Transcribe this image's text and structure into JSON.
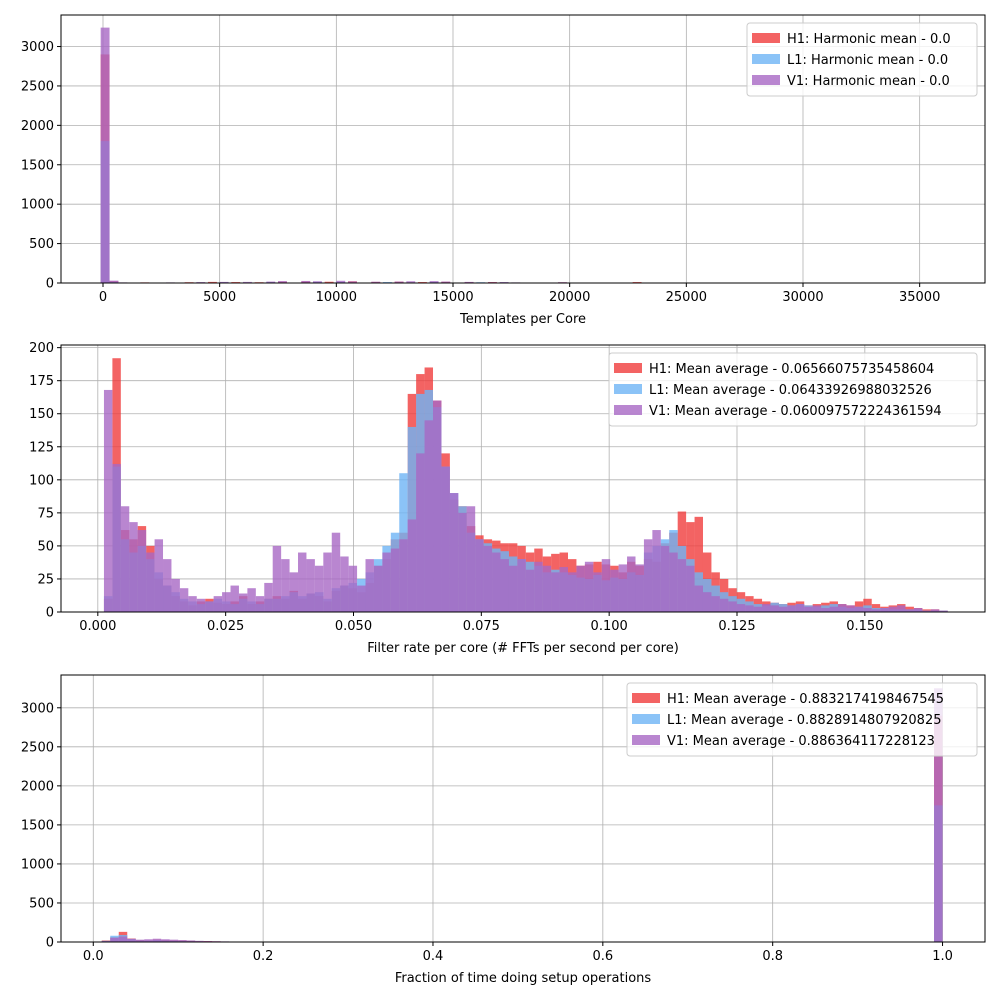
{
  "chart_data": [
    {
      "type": "bar",
      "xlabel": "Templates per Core",
      "ylabel": "",
      "xlim": [
        -1800,
        37800
      ],
      "ylim": [
        0,
        3400
      ],
      "xticks": [
        0,
        5000,
        10000,
        15000,
        20000,
        25000,
        30000,
        35000
      ],
      "xtick_labels": [
        "0",
        "5000",
        "10000",
        "15000",
        "20000",
        "25000",
        "30000",
        "35000"
      ],
      "yticks": [
        0,
        500,
        1000,
        1500,
        2000,
        2500,
        3000
      ],
      "ytick_labels": [
        "0",
        "500",
        "1000",
        "1500",
        "2000",
        "2500",
        "3000"
      ],
      "grid": true,
      "legend_position": "upper-right",
      "series": [
        {
          "name": "H1: Harmonic mean  - 0.0",
          "color": "#f03c3c",
          "bins": [
            [
              -100,
              280,
              2900
            ],
            [
              280,
              660,
              25
            ],
            [
              660,
              1040,
              6
            ],
            [
              1600,
              1980,
              8
            ],
            [
              2600,
              2980,
              6
            ],
            [
              3500,
              3880,
              10
            ],
            [
              4500,
              4880,
              14
            ],
            [
              5500,
              5880,
              12
            ],
            [
              6500,
              6880,
              10
            ],
            [
              7500,
              7880,
              18
            ],
            [
              8500,
              8880,
              20
            ],
            [
              9500,
              9880,
              16
            ],
            [
              10500,
              10880,
              22
            ],
            [
              11500,
              11880,
              14
            ],
            [
              12500,
              12880,
              18
            ],
            [
              13500,
              13880,
              12
            ],
            [
              14500,
              14880,
              16
            ],
            [
              15500,
              15880,
              10
            ],
            [
              16500,
              16880,
              12
            ],
            [
              18000,
              18380,
              6
            ],
            [
              19500,
              19880,
              8
            ],
            [
              22700,
              23080,
              12
            ]
          ]
        },
        {
          "name": "L1: Harmonic mean  - 0.0",
          "color": "#6eb4f5",
          "bins": [
            [
              -100,
              280,
              1800
            ],
            [
              280,
              660,
              15
            ],
            [
              660,
              1040,
              5
            ],
            [
              3000,
              3380,
              6
            ],
            [
              5000,
              5380,
              10
            ],
            [
              7000,
              7380,
              12
            ],
            [
              9000,
              9380,
              16
            ],
            [
              10000,
              10380,
              14
            ],
            [
              12000,
              12380,
              12
            ],
            [
              14000,
              14380,
              14
            ],
            [
              16000,
              16380,
              10
            ],
            [
              17000,
              17380,
              8
            ],
            [
              19000,
              19380,
              6
            ]
          ]
        },
        {
          "name": "V1: Harmonic mean  - 0.0",
          "color": "#a868c4",
          "bins": [
            [
              -100,
              280,
              3240
            ],
            [
              280,
              660,
              30
            ],
            [
              660,
              1040,
              8
            ],
            [
              2700,
              3080,
              8
            ],
            [
              4000,
              4380,
              12
            ],
            [
              5000,
              5380,
              14
            ],
            [
              6000,
              6380,
              14
            ],
            [
              7000,
              7380,
              18
            ],
            [
              7500,
              7880,
              24
            ],
            [
              8500,
              8880,
              26
            ],
            [
              9000,
              9380,
              22
            ],
            [
              10000,
              10380,
              28
            ],
            [
              10500,
              10880,
              20
            ],
            [
              11500,
              11880,
              16
            ],
            [
              12500,
              12880,
              18
            ],
            [
              13000,
              13380,
              22
            ],
            [
              14000,
              14380,
              24
            ],
            [
              14500,
              14880,
              18
            ],
            [
              15500,
              15880,
              14
            ],
            [
              16500,
              16880,
              10
            ],
            [
              17000,
              17380,
              12
            ],
            [
              17500,
              17880,
              8
            ],
            [
              19500,
              19880,
              10
            ],
            [
              20000,
              20380,
              6
            ]
          ]
        }
      ]
    },
    {
      "type": "bar",
      "xlabel": "Filter rate per core (# FFTs per second per core)",
      "ylabel": "",
      "xlim": [
        -0.0072,
        0.1735
      ],
      "ylim": [
        0,
        202
      ],
      "xticks": [
        0.0,
        0.025,
        0.05,
        0.075,
        0.1,
        0.125,
        0.15
      ],
      "xtick_labels": [
        "0.000",
        "0.025",
        "0.050",
        "0.075",
        "0.100",
        "0.125",
        "0.150"
      ],
      "yticks": [
        0,
        25,
        50,
        75,
        100,
        125,
        150,
        175,
        200
      ],
      "ytick_labels": [
        "0",
        "25",
        "50",
        "75",
        "100",
        "125",
        "150",
        "175",
        "200"
      ],
      "grid": true,
      "legend_position": "upper-right",
      "series": [
        {
          "name": "H1: Mean average - 0.06566075735458604",
          "color": "#f03c3c",
          "x_start": 0.0012,
          "bin_width": 0.00165,
          "counts": [
            10,
            192,
            62,
            55,
            65,
            50,
            25,
            20,
            12,
            8,
            5,
            8,
            10,
            7,
            6,
            8,
            12,
            6,
            8,
            10,
            12,
            10,
            16,
            10,
            14,
            12,
            8,
            16,
            20,
            18,
            15,
            22,
            35,
            40,
            55,
            60,
            165,
            180,
            185,
            160,
            120,
            85,
            80,
            65,
            58,
            55,
            54,
            52,
            52,
            50,
            45,
            48,
            42,
            44,
            45,
            40,
            35,
            36,
            38,
            36,
            35,
            30,
            38,
            35,
            40,
            38,
            52,
            60,
            76,
            68,
            72,
            45,
            30,
            25,
            18,
            15,
            12,
            10,
            8,
            7,
            6,
            7,
            8,
            5,
            6,
            7,
            8,
            6,
            5,
            8,
            10,
            6,
            4,
            5,
            6,
            4,
            3,
            2,
            2,
            1
          ]
        },
        {
          "name": "L1: Mean average - 0.06433926988032526",
          "color": "#6eb4f5",
          "x_start": 0.0012,
          "bin_width": 0.00165,
          "counts": [
            12,
            110,
            55,
            45,
            50,
            40,
            30,
            20,
            15,
            10,
            8,
            6,
            8,
            10,
            8,
            6,
            10,
            8,
            6,
            10,
            10,
            12,
            15,
            12,
            14,
            15,
            10,
            18,
            20,
            22,
            25,
            30,
            40,
            50,
            60,
            105,
            140,
            165,
            168,
            155,
            110,
            90,
            80,
            60,
            55,
            52,
            48,
            46,
            42,
            40,
            38,
            35,
            30,
            32,
            30,
            28,
            26,
            25,
            28,
            24,
            26,
            25,
            30,
            28,
            45,
            50,
            55,
            62,
            50,
            40,
            30,
            25,
            20,
            15,
            12,
            10,
            8,
            6,
            5,
            7,
            6,
            5,
            6,
            5,
            4,
            5,
            6,
            4,
            3,
            4,
            5,
            3,
            3,
            2,
            2,
            2,
            2,
            1,
            1,
            1
          ]
        },
        {
          "name": "V1: Mean average - 0.060097572224361594",
          "color": "#a868c4",
          "x_start": 0.0012,
          "bin_width": 0.00165,
          "counts": [
            168,
            112,
            80,
            68,
            62,
            45,
            55,
            40,
            25,
            18,
            12,
            10,
            8,
            12,
            15,
            20,
            14,
            18,
            12,
            22,
            50,
            40,
            30,
            45,
            40,
            35,
            45,
            60,
            42,
            35,
            20,
            40,
            35,
            45,
            48,
            55,
            70,
            120,
            145,
            160,
            110,
            90,
            75,
            80,
            55,
            50,
            45,
            40,
            35,
            40,
            32,
            38,
            35,
            30,
            34,
            30,
            35,
            38,
            30,
            40,
            32,
            36,
            42,
            36,
            55,
            62,
            50,
            45,
            40,
            35,
            20,
            15,
            12,
            10,
            8,
            6,
            5,
            4,
            6,
            5,
            4,
            5,
            6,
            4,
            5,
            3,
            4,
            6,
            5,
            4,
            3,
            2,
            3,
            4,
            5,
            2,
            3,
            1,
            2,
            1
          ]
        }
      ]
    },
    {
      "type": "bar",
      "xlabel": "Fraction of time doing setup operations",
      "ylabel": "",
      "xlim": [
        -0.038,
        1.05
      ],
      "ylim": [
        0,
        3420
      ],
      "xticks": [
        0.0,
        0.2,
        0.4,
        0.6,
        0.8,
        1.0
      ],
      "xtick_labels": [
        "0.0",
        "0.2",
        "0.4",
        "0.6",
        "0.8",
        "1.0"
      ],
      "yticks": [
        0,
        500,
        1000,
        1500,
        2000,
        2500,
        3000
      ],
      "ytick_labels": [
        "0",
        "500",
        "1000",
        "1500",
        "2000",
        "2500",
        "3000"
      ],
      "grid": true,
      "legend_position": "upper-right",
      "series": [
        {
          "name": "H1: Mean average - 0.8832174198467545",
          "color": "#f03c3c",
          "bins": [
            [
              0.01,
              0.02,
              20
            ],
            [
              0.02,
              0.03,
              60
            ],
            [
              0.03,
              0.04,
              130
            ],
            [
              0.04,
              0.05,
              45
            ],
            [
              0.05,
              0.06,
              25
            ],
            [
              0.06,
              0.07,
              20
            ],
            [
              0.07,
              0.08,
              30
            ],
            [
              0.08,
              0.09,
              25
            ],
            [
              0.09,
              0.1,
              20
            ],
            [
              0.1,
              0.11,
              18
            ],
            [
              0.11,
              0.12,
              15
            ],
            [
              0.12,
              0.13,
              10
            ],
            [
              0.13,
              0.14,
              12
            ],
            [
              0.14,
              0.15,
              8
            ],
            [
              0.15,
              0.16,
              6
            ],
            [
              0.16,
              0.17,
              5
            ],
            [
              0.18,
              0.19,
              4
            ],
            [
              0.23,
              0.24,
              5
            ],
            [
              0.26,
              0.27,
              3
            ],
            [
              0.99,
              1.0,
              2900
            ]
          ]
        },
        {
          "name": "L1: Mean average - 0.8828914807920825",
          "color": "#6eb4f5",
          "bins": [
            [
              0.01,
              0.02,
              15
            ],
            [
              0.02,
              0.03,
              80
            ],
            [
              0.03,
              0.04,
              90
            ],
            [
              0.04,
              0.05,
              40
            ],
            [
              0.05,
              0.06,
              20
            ],
            [
              0.06,
              0.07,
              18
            ],
            [
              0.07,
              0.08,
              25
            ],
            [
              0.08,
              0.09,
              20
            ],
            [
              0.09,
              0.1,
              15
            ],
            [
              0.1,
              0.11,
              12
            ],
            [
              0.11,
              0.12,
              10
            ],
            [
              0.12,
              0.13,
              8
            ],
            [
              0.14,
              0.15,
              6
            ],
            [
              0.16,
              0.17,
              4
            ],
            [
              0.99,
              1.0,
              1750
            ]
          ]
        },
        {
          "name": "V1: Mean average - 0.886364117228123",
          "color": "#a868c4",
          "bins": [
            [
              0.01,
              0.02,
              12
            ],
            [
              0.02,
              0.03,
              55
            ],
            [
              0.03,
              0.04,
              70
            ],
            [
              0.04,
              0.05,
              40
            ],
            [
              0.05,
              0.06,
              30
            ],
            [
              0.06,
              0.07,
              35
            ],
            [
              0.07,
              0.08,
              42
            ],
            [
              0.08,
              0.09,
              35
            ],
            [
              0.09,
              0.1,
              30
            ],
            [
              0.1,
              0.11,
              25
            ],
            [
              0.11,
              0.12,
              20
            ],
            [
              0.12,
              0.13,
              15
            ],
            [
              0.13,
              0.14,
              12
            ],
            [
              0.14,
              0.15,
              10
            ],
            [
              0.15,
              0.16,
              8
            ],
            [
              0.17,
              0.18,
              5
            ],
            [
              0.19,
              0.2,
              4
            ],
            [
              0.21,
              0.22,
              3
            ],
            [
              0.25,
              0.26,
              4
            ],
            [
              0.99,
              1.0,
              3250
            ]
          ]
        }
      ]
    }
  ]
}
